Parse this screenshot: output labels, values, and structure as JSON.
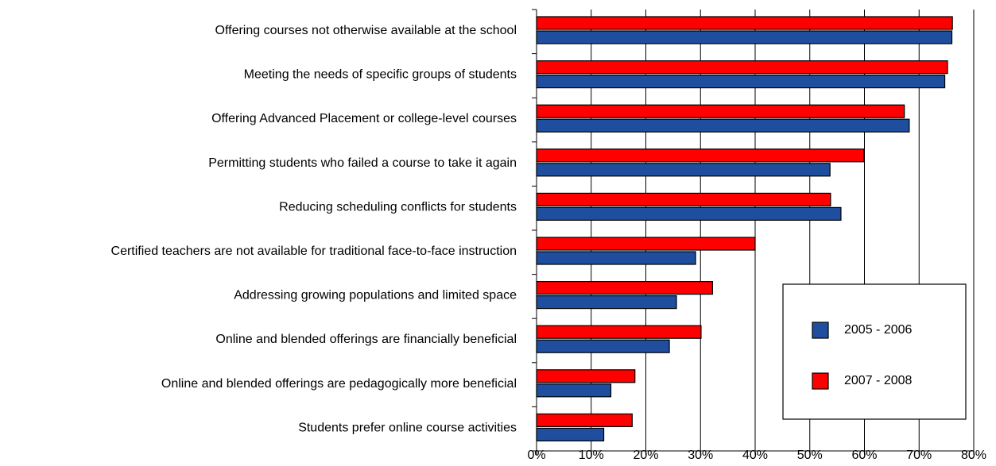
{
  "chart_data": {
    "type": "hbar",
    "categories": [
      "Offering courses not otherwise available at the school",
      "Meeting the needs of specific groups of students",
      "Offering Advanced Placement or college-level courses",
      "Permitting students who failed a course to take it again",
      "Reducing scheduling conflicts for students",
      "Certified teachers are not available for traditional face-to-face instruction",
      "Addressing growing populations and limited space",
      "Online and blended offerings are financially beneficial",
      "Online and blended offerings are pedagogically more beneficial",
      "Students prefer online course activities"
    ],
    "series": [
      {
        "name": "2005 - 2006",
        "color": "#1f4e9e",
        "values": [
          76,
          74.7,
          68.2,
          53.7,
          55.7,
          29.1,
          25.6,
          24.3,
          13.6,
          12.3
        ]
      },
      {
        "name": "2007 - 2008",
        "color": "#ff0000",
        "values": [
          76.1,
          75.2,
          67.3,
          59.9,
          53.8,
          40,
          32.2,
          30.1,
          18,
          17.5
        ]
      }
    ],
    "xlim": [
      0,
      80
    ],
    "xticks": [
      {
        "value": 0,
        "label": "0%"
      },
      {
        "value": 10,
        "label": "10%"
      },
      {
        "value": 20,
        "label": "20%"
      },
      {
        "value": 30,
        "label": "30%"
      },
      {
        "value": 40,
        "label": "40%"
      },
      {
        "value": 50,
        "label": "50%"
      },
      {
        "value": 60,
        "label": "60%"
      },
      {
        "value": 70,
        "label": "70%"
      },
      {
        "value": 80,
        "label": "80%"
      }
    ],
    "grid": true,
    "legend": "lower right"
  }
}
